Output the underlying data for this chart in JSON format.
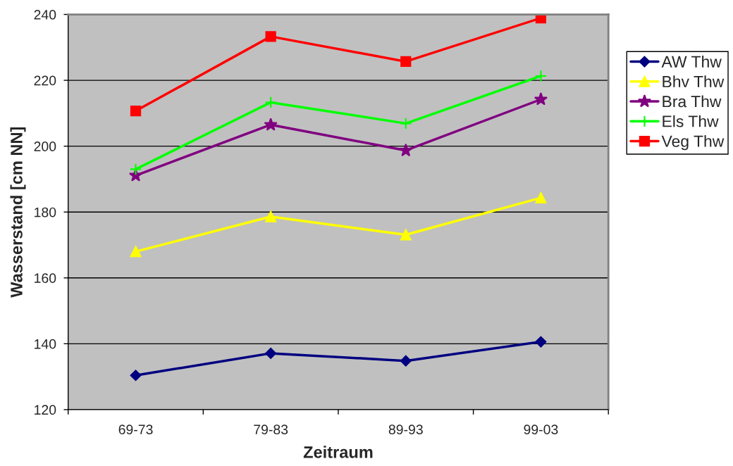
{
  "chart_data": {
    "type": "line",
    "xlabel": "Zeitraum",
    "ylabel": "Wasserstand [cm NN]",
    "categories": [
      "69-73",
      "79-83",
      "89-93",
      "99-03"
    ],
    "series": [
      {
        "name": "AW Thw",
        "color": "#000080",
        "marker": "diamond",
        "values": [
          130.4,
          137.1,
          134.8,
          140.6
        ]
      },
      {
        "name": "Bhv Thw",
        "color": "#ffff00",
        "marker": "triangle",
        "values": [
          168.0,
          178.6,
          173.1,
          184.3
        ]
      },
      {
        "name": "Bra Thw",
        "color": "#800080",
        "marker": "star",
        "values": [
          191.1,
          206.5,
          198.7,
          214.2
        ]
      },
      {
        "name": "Els Thw",
        "color": "#00ff00",
        "marker": "cross",
        "values": [
          193.0,
          213.3,
          206.9,
          221.3
        ]
      },
      {
        "name": "Veg Thw",
        "color": "#ff0000",
        "marker": "square",
        "values": [
          210.7,
          233.3,
          225.7,
          238.9
        ]
      }
    ],
    "ylim": [
      120,
      240
    ],
    "yticks": [
      120,
      140,
      160,
      180,
      200,
      220,
      240
    ],
    "grid": "y",
    "legend": "right",
    "line_style": "solid"
  }
}
